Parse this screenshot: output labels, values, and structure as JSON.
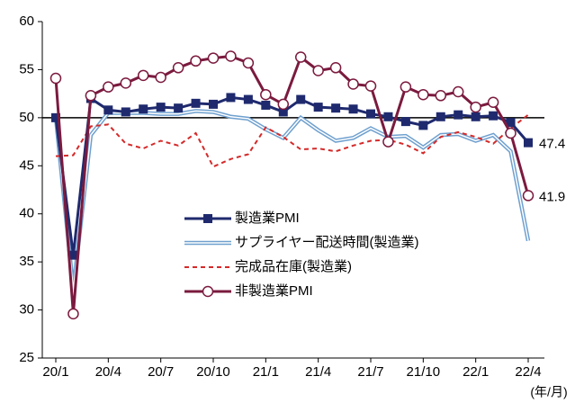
{
  "chart_data": {
    "type": "line",
    "categories": [
      "20/1",
      null,
      null,
      "20/4",
      null,
      null,
      "20/7",
      null,
      null,
      "20/10",
      null,
      null,
      "21/1",
      null,
      null,
      "21/4",
      null,
      null,
      "21/7",
      null,
      null,
      "21/10",
      null,
      null,
      "22/1",
      null,
      null,
      "22/4"
    ],
    "x_label": "(年/月)",
    "ylim": [
      25,
      60
    ],
    "yticks": [
      25,
      30,
      35,
      40,
      45,
      50,
      55,
      60
    ],
    "reference_line": 50,
    "series": [
      {
        "name": "製造業PMI",
        "color": "#1f2a6e",
        "marker": "square",
        "label_last": true,
        "values": [
          50.0,
          35.7,
          52.0,
          50.8,
          50.6,
          50.9,
          51.1,
          51.0,
          51.5,
          51.4,
          52.1,
          51.9,
          51.3,
          50.6,
          51.9,
          51.1,
          51.0,
          50.9,
          50.4,
          50.1,
          49.6,
          49.2,
          50.1,
          50.3,
          50.1,
          50.2,
          49.5,
          47.4
        ]
      },
      {
        "name": "サプライヤー配送時間(製造業)",
        "color": "#6fa0cf",
        "double": true,
        "values": [
          50.1,
          32.1,
          48.2,
          50.5,
          50.5,
          50.5,
          50.4,
          50.4,
          50.7,
          50.6,
          50.1,
          49.9,
          48.8,
          47.9,
          50.0,
          48.7,
          47.6,
          47.9,
          48.9,
          48.0,
          48.1,
          46.9,
          48.2,
          48.3,
          47.6,
          48.2,
          46.5,
          37.2
        ]
      },
      {
        "name": "完成品在庫(製造業)",
        "color": "#d42a2a",
        "dash": true,
        "values": [
          46.0,
          46.1,
          49.1,
          49.3,
          47.3,
          46.8,
          47.6,
          47.1,
          48.4,
          44.9,
          45.7,
          46.2,
          49.0,
          48.0,
          46.7,
          46.8,
          46.5,
          47.1,
          47.6,
          47.7,
          47.2,
          46.3,
          48.0,
          48.5,
          48.0,
          47.3,
          48.9,
          50.3
        ]
      },
      {
        "name": "非製造業PMI",
        "color": "#7b1a3e",
        "marker": "circle",
        "label_last": true,
        "values": [
          54.1,
          29.6,
          52.3,
          53.2,
          53.6,
          54.4,
          54.2,
          55.2,
          55.9,
          56.2,
          56.4,
          55.7,
          52.4,
          51.4,
          56.3,
          54.9,
          55.2,
          53.5,
          53.3,
          47.5,
          53.2,
          52.4,
          52.3,
          52.7,
          51.1,
          51.6,
          48.4,
          41.9
        ]
      }
    ]
  }
}
